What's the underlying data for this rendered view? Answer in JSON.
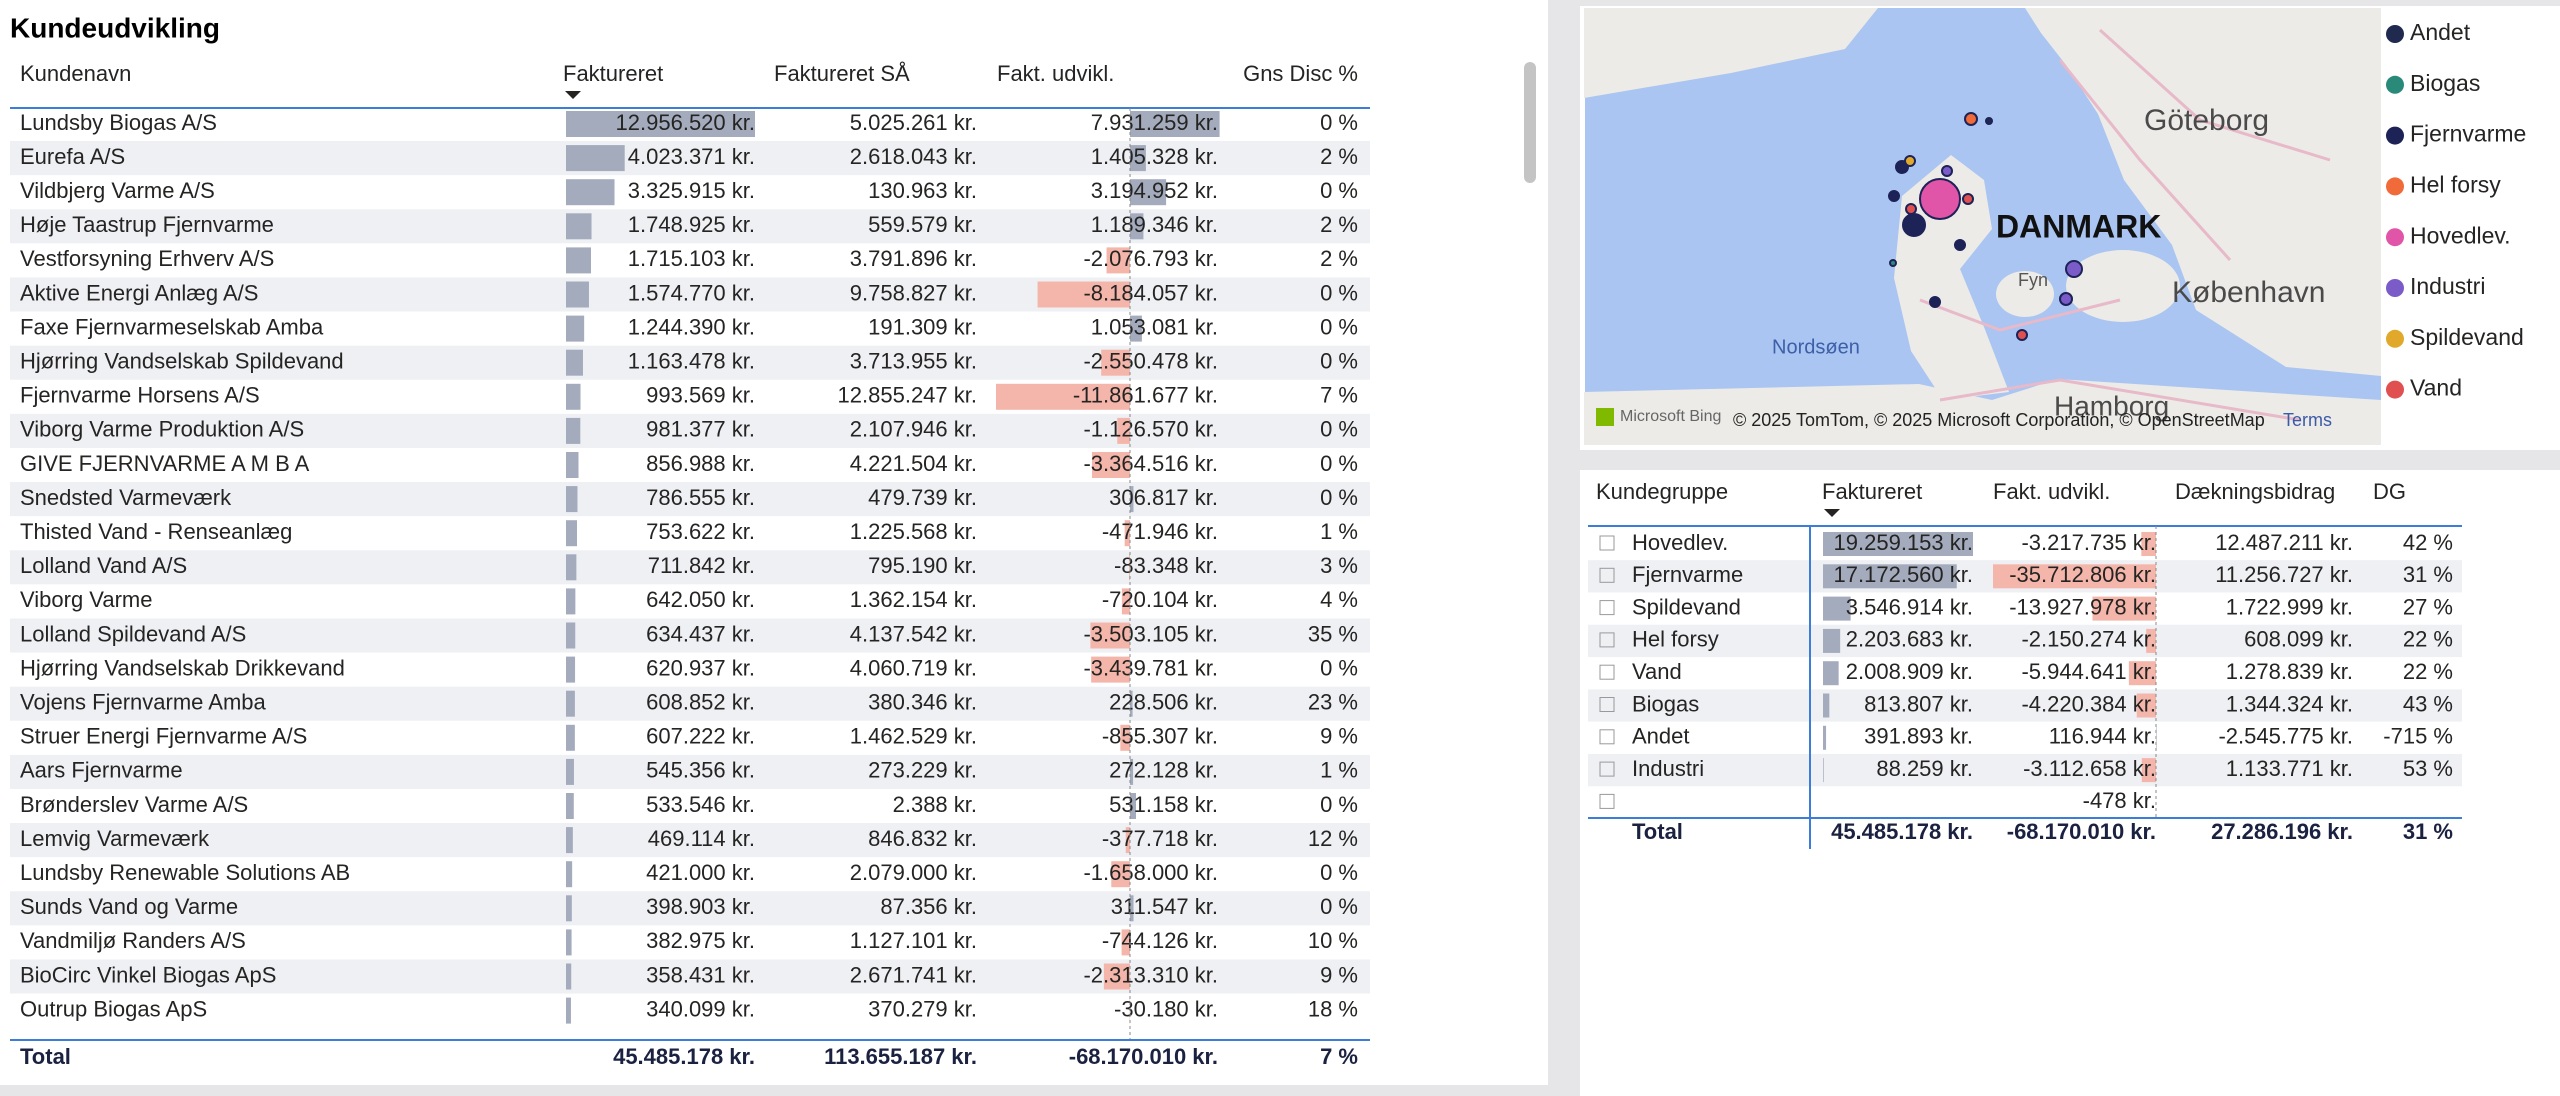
{
  "title": "Kundeudvikling",
  "customer_table": {
    "columns": [
      "Kundenavn",
      "Faktureret",
      "Faktureret SÅ",
      "Fakt. udvikl.",
      "Gns Disc %"
    ],
    "rows": [
      [
        "Lundsby Biogas A/S",
        "12.956.520 kr.",
        "5.025.261 kr.",
        "7.931.259 kr.",
        "0 %"
      ],
      [
        "Eurefa A/S",
        "4.023.371 kr.",
        "2.618.043 kr.",
        "1.405.328 kr.",
        "2 %"
      ],
      [
        "Vildbjerg Varme A/S",
        "3.325.915 kr.",
        "130.963 kr.",
        "3.194.952 kr.",
        "0 %"
      ],
      [
        "Høje Taastrup Fjernvarme",
        "1.748.925 kr.",
        "559.579 kr.",
        "1.189.346 kr.",
        "2 %"
      ],
      [
        "Vestforsyning Erhverv A/S",
        "1.715.103 kr.",
        "3.791.896 kr.",
        "-2.076.793 kr.",
        "2 %"
      ],
      [
        "Aktive Energi Anlæg A/S",
        "1.574.770 kr.",
        "9.758.827 kr.",
        "-8.184.057 kr.",
        "0 %"
      ],
      [
        "Faxe Fjernvarmeselskab Amba",
        "1.244.390 kr.",
        "191.309 kr.",
        "1.053.081 kr.",
        "0 %"
      ],
      [
        "Hjørring Vandselskab Spildevand",
        "1.163.478 kr.",
        "3.713.955 kr.",
        "-2.550.478 kr.",
        "0 %"
      ],
      [
        "Fjernvarme Horsens A/S",
        "993.569 kr.",
        "12.855.247 kr.",
        "-11.861.677 kr.",
        "7 %"
      ],
      [
        "Viborg Varme Produktion A/S",
        "981.377 kr.",
        "2.107.946 kr.",
        "-1.126.570 kr.",
        "0 %"
      ],
      [
        "GIVE FJERNVARME A M B A",
        "856.988 kr.",
        "4.221.504 kr.",
        "-3.364.516 kr.",
        "0 %"
      ],
      [
        "Snedsted Varmeværk",
        "786.555 kr.",
        "479.739 kr.",
        "306.817 kr.",
        "0 %"
      ],
      [
        "Thisted Vand - Renseanlæg",
        "753.622 kr.",
        "1.225.568 kr.",
        "-471.946 kr.",
        "1 %"
      ],
      [
        "Lolland Vand A/S",
        "711.842 kr.",
        "795.190 kr.",
        "-83.348 kr.",
        "3 %"
      ],
      [
        "Viborg Varme",
        "642.050 kr.",
        "1.362.154 kr.",
        "-720.104 kr.",
        "4 %"
      ],
      [
        "Lolland Spildevand A/S",
        "634.437 kr.",
        "4.137.542 kr.",
        "-3.503.105 kr.",
        "35 %"
      ],
      [
        "Hjørring Vandselskab Drikkevand",
        "620.937 kr.",
        "4.060.719 kr.",
        "-3.439.781 kr.",
        "0 %"
      ],
      [
        "Vojens Fjernvarme Amba",
        "608.852 kr.",
        "380.346 kr.",
        "228.506 kr.",
        "23 %"
      ],
      [
        "Struer Energi Fjernvarme A/S",
        "607.222 kr.",
        "1.462.529 kr.",
        "-855.307 kr.",
        "9 %"
      ],
      [
        "Aars Fjernvarme",
        "545.356 kr.",
        "273.229 kr.",
        "272.128 kr.",
        "1 %"
      ],
      [
        "Brønderslev Varme A/S",
        "533.546 kr.",
        "2.388 kr.",
        "531.158 kr.",
        "0 %"
      ],
      [
        "Lemvig Varmeværk",
        "469.114 kr.",
        "846.832 kr.",
        "-377.718 kr.",
        "12 %"
      ],
      [
        "Lundsby Renewable Solutions AB",
        "421.000 kr.",
        "2.079.000 kr.",
        "-1.658.000 kr.",
        "0 %"
      ],
      [
        "Sunds Vand og Varme",
        "398.903 kr.",
        "87.356 kr.",
        "311.547 kr.",
        "0 %"
      ],
      [
        "Vandmiljø Randers A/S",
        "382.975 kr.",
        "1.127.101 kr.",
        "-744.126 kr.",
        "10 %"
      ],
      [
        "BioCirc Vinkel Biogas ApS",
        "358.431 kr.",
        "2.671.741 kr.",
        "-2.313.310 kr.",
        "9 %"
      ],
      [
        "Outrup Biogas ApS",
        "340.099 kr.",
        "370.279 kr.",
        "-30.180 kr.",
        "18 %"
      ]
    ],
    "total": [
      "Total",
      "45.485.178 kr.",
      "113.655.187 kr.",
      "-68.170.010 kr.",
      "7 %"
    ]
  },
  "map": {
    "places": [
      "Göteborg",
      "DANMARK",
      "København",
      "Nordsøen",
      "Hamborg",
      "Fyn"
    ],
    "provider": "Microsoft Bing",
    "attribution": "© 2025 TomTom, © 2025 Microsoft Corporation, © OpenStreetMap",
    "terms": "Terms",
    "legend": [
      {
        "name": "Andet",
        "color": "#1f2a4e"
      },
      {
        "name": "Biogas",
        "color": "#2a8a7a"
      },
      {
        "name": "Fjernvarme",
        "color": "#1d2257"
      },
      {
        "name": "Hel forsy",
        "color": "#f06a3a"
      },
      {
        "name": "Hovedlev.",
        "color": "#e055a8"
      },
      {
        "name": "Industri",
        "color": "#7a5bc7"
      },
      {
        "name": "Spildevand",
        "color": "#e0a92c"
      },
      {
        "name": "Vand",
        "color": "#e05050"
      }
    ]
  },
  "group_table": {
    "columns": [
      "Kundegruppe",
      "Faktureret",
      "Fakt. udvikl.",
      "Dækningsbidrag",
      "DG"
    ],
    "rows": [
      [
        "Hovedlev.",
        "19.259.153 kr.",
        "-3.217.735 kr.",
        "12.487.211 kr.",
        "42 %"
      ],
      [
        "Fjernvarme",
        "17.172.560 kr.",
        "-35.712.806 kr.",
        "11.256.727 kr.",
        "31 %"
      ],
      [
        "Spildevand",
        "3.546.914 kr.",
        "-13.927.978 kr.",
        "1.722.999 kr.",
        "27 %"
      ],
      [
        "Hel forsy",
        "2.203.683 kr.",
        "-2.150.274 kr.",
        "608.099 kr.",
        "22 %"
      ],
      [
        "Vand",
        "2.008.909 kr.",
        "-5.944.641 kr.",
        "1.278.839 kr.",
        "22 %"
      ],
      [
        "Biogas",
        "813.807 kr.",
        "-4.220.384 kr.",
        "1.344.324 kr.",
        "43 %"
      ],
      [
        "Andet",
        "391.893 kr.",
        "116.944 kr.",
        "-2.545.775 kr.",
        "-715 %"
      ],
      [
        "Industri",
        "88.259 kr.",
        "-3.112.658 kr.",
        "1.133.771 kr.",
        "53 %"
      ],
      [
        null,
        null,
        "-478 kr.",
        null,
        null
      ]
    ],
    "total": [
      "Total",
      "45.485.178 kr.",
      "-68.170.010 kr.",
      "27.286.196 kr.",
      "31 %"
    ]
  }
}
